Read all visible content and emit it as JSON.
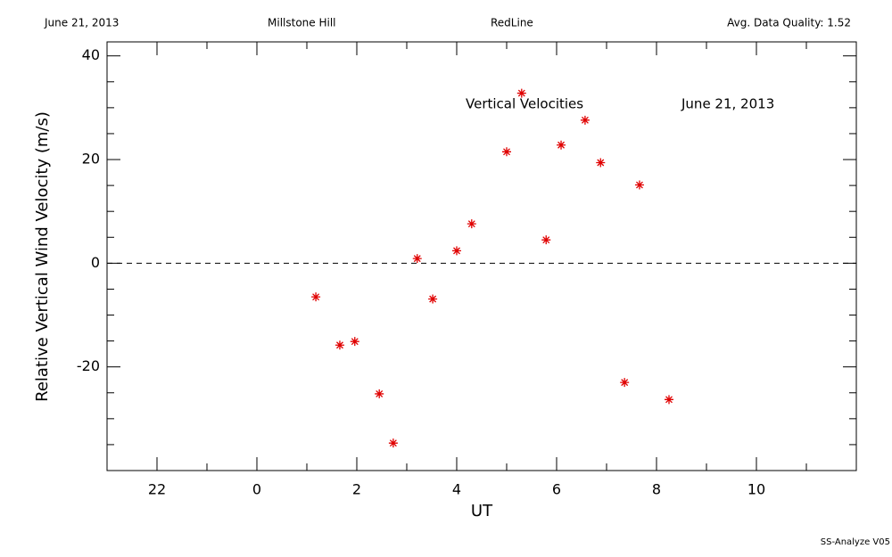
{
  "chart_data": {
    "type": "scatter",
    "header": [
      "June 21, 2013",
      "Millstone Hill",
      "RedLine",
      "Avg. Data Quality: 1.52"
    ],
    "annotations": [
      "Vertical Velocities",
      "June 21, 2013"
    ],
    "footer": "SS-Analyze V05",
    "xlabel": "UT",
    "ylabel": "Relative Vertical Wind Velocity (m/s)",
    "xlim": [
      -3,
      12
    ],
    "ylim": [
      -40,
      42.7
    ],
    "xticks": [
      {
        "value": -2,
        "label": "22"
      },
      0,
      2,
      4,
      6,
      8,
      10
    ],
    "yticks": [
      -20,
      0,
      20,
      40
    ],
    "xticks_minor": [
      -3,
      -1,
      1,
      3,
      5,
      7,
      9,
      11
    ],
    "yticks_minor": [
      -40,
      -35,
      -30,
      -25,
      -15,
      -10,
      -5,
      5,
      10,
      15,
      25,
      30,
      35
    ],
    "zero_line": 0,
    "series": [
      {
        "name": "Vertical Velocities",
        "color": "#e00000",
        "x": [
          1.18,
          1.66,
          1.96,
          2.45,
          2.73,
          3.21,
          3.52,
          4.0,
          4.3,
          5.0,
          5.3,
          5.79,
          6.09,
          6.57,
          6.88,
          7.36,
          7.66,
          8.25
        ],
        "values": [
          -6.5,
          -15.8,
          -15.1,
          -25.2,
          -34.7,
          0.9,
          -6.9,
          2.4,
          7.6,
          21.5,
          32.8,
          4.5,
          22.8,
          27.6,
          19.4,
          -23.0,
          15.1,
          -26.3
        ]
      }
    ]
  }
}
